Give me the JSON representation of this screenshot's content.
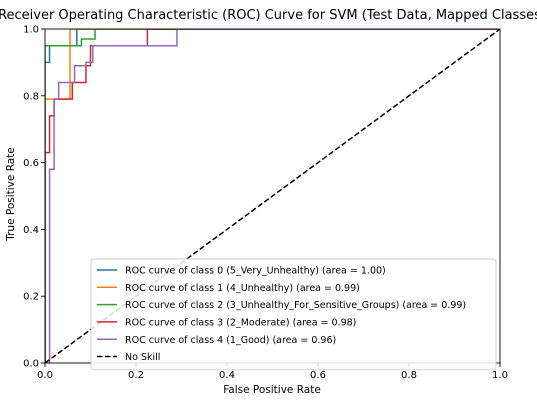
{
  "chart_data": {
    "type": "line",
    "title": "Receiver Operating Characteristic (ROC) Curve for SVM (Test Data, Mapped Classes)",
    "xlabel": "False Positive Rate",
    "ylabel": "True Positive Rate",
    "xlim": [
      0.0,
      1.0
    ],
    "ylim": [
      0.0,
      1.0
    ],
    "xticks": [
      0.0,
      0.2,
      0.4,
      0.6,
      0.8,
      1.0
    ],
    "yticks": [
      0.0,
      0.2,
      0.4,
      0.6,
      0.8,
      1.0
    ],
    "xtick_labels": [
      "0.0",
      "0.2",
      "0.4",
      "0.6",
      "0.8",
      "1.0"
    ],
    "ytick_labels": [
      "0.0",
      "0.2",
      "0.4",
      "0.6",
      "0.8",
      "1.0"
    ],
    "grid": false,
    "legend_position": "lower-right",
    "series": [
      {
        "name": "ROC curve of class 0 (5_Very_Unhealthy) (area = 1.00)",
        "color": "#1f77b4",
        "dash": "solid",
        "x": [
          0.0,
          0.0,
          0.0,
          0.01,
          0.01,
          0.07,
          0.07,
          1.0
        ],
        "y": [
          0.0,
          0.9,
          0.9,
          0.9,
          0.95,
          0.95,
          1.0,
          1.0
        ]
      },
      {
        "name": "ROC curve of class 1 (4_Unhealthy) (area = 0.99)",
        "color": "#ff7f0e",
        "dash": "solid",
        "x": [
          0.0,
          0.0,
          0.03,
          0.03,
          0.055,
          0.055,
          1.0
        ],
        "y": [
          0.0,
          0.79,
          0.79,
          0.79,
          0.79,
          1.0,
          1.0
        ]
      },
      {
        "name": "ROC curve of class 2 (3_Unhealthy_For_Sensitive_Groups) (area = 0.99)",
        "color": "#2ca02c",
        "dash": "solid",
        "x": [
          0.0,
          0.0,
          0.08,
          0.08,
          0.11,
          0.11,
          1.0
        ],
        "y": [
          0.0,
          0.95,
          0.95,
          0.97,
          0.97,
          1.0,
          1.0
        ]
      },
      {
        "name": "ROC curve of class 3 (2_Moderate) (area = 0.98)",
        "color": "#d62728",
        "dash": "solid",
        "x": [
          0.0,
          0.0,
          0.01,
          0.01,
          0.02,
          0.02,
          0.06,
          0.06,
          0.09,
          0.09,
          0.1,
          0.1,
          0.225,
          0.225,
          1.0
        ],
        "y": [
          0.0,
          0.63,
          0.63,
          0.74,
          0.74,
          0.79,
          0.79,
          0.84,
          0.84,
          0.89,
          0.89,
          0.95,
          0.95,
          1.0,
          1.0
        ]
      },
      {
        "name": "ROC curve of class 4 (1_Good) (area = 0.96)",
        "color": "#9467bd",
        "dash": "solid",
        "x": [
          0.0,
          0.01,
          0.01,
          0.02,
          0.02,
          0.03,
          0.03,
          0.065,
          0.065,
          0.09,
          0.09,
          0.105,
          0.105,
          0.29,
          0.29,
          1.0
        ],
        "y": [
          0.0,
          0.0,
          0.58,
          0.58,
          0.79,
          0.79,
          0.84,
          0.84,
          0.89,
          0.89,
          0.9,
          0.9,
          0.95,
          0.95,
          1.0,
          1.0
        ]
      },
      {
        "name": "No Skill",
        "color": "#000000",
        "dash": "dashed",
        "x": [
          0.0,
          1.0
        ],
        "y": [
          0.0,
          1.0
        ]
      }
    ]
  }
}
